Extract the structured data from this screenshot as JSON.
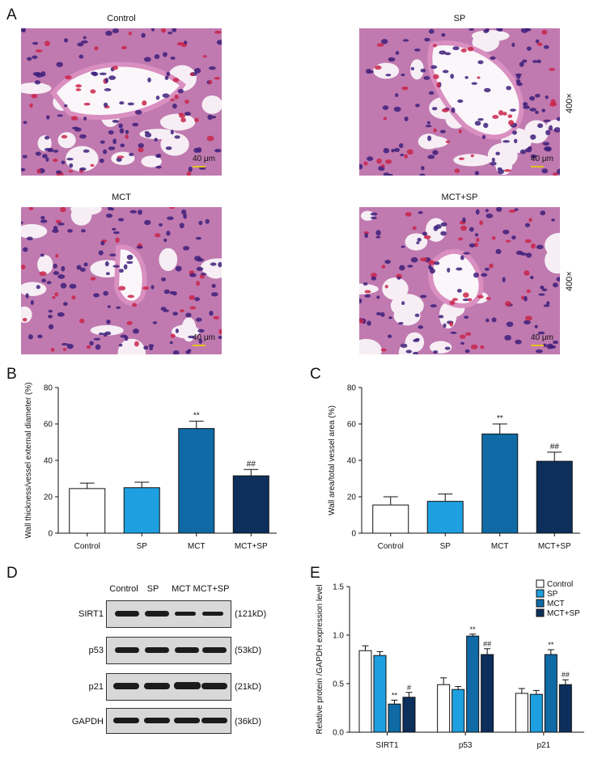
{
  "panels": {
    "A": "A",
    "B": "B",
    "C": "C",
    "D": "D",
    "E": "E"
  },
  "histology": {
    "images": [
      {
        "title": "Control",
        "scale": "40 μm"
      },
      {
        "title": "SP",
        "scale": "40 μm",
        "magnification": "400×"
      },
      {
        "title": "MCT",
        "scale": "40 μm"
      },
      {
        "title": "MCT+SP",
        "scale": "40 μm",
        "magnification": "400×"
      }
    ]
  },
  "western_blot": {
    "lanes": [
      "Control",
      "SP",
      "MCT",
      "MCT+SP"
    ],
    "rows": [
      {
        "label": "SIRT1",
        "kd": "(121kD)"
      },
      {
        "label": "p53",
        "kd": "(53kD)"
      },
      {
        "label": "p21",
        "kd": "(21kD)"
      },
      {
        "label": "GAPDH",
        "kd": "(36kD)"
      }
    ],
    "colors": {
      "band": "#1b1b1b",
      "background": "#d8d8d8"
    }
  },
  "chart_data": [
    {
      "id": "B",
      "type": "bar",
      "categories": [
        "Control",
        "SP",
        "MCT",
        "MCT+SP"
      ],
      "values": [
        24.5,
        25,
        57.5,
        31.5
      ],
      "errors": [
        3,
        3,
        4,
        3.5
      ],
      "annotations": [
        "",
        "",
        "**",
        "##"
      ],
      "ylabel": "Wall thickness/vessel external diameter (%)",
      "ylim": [
        0,
        80
      ],
      "yticks": [
        "0",
        "20",
        "40",
        "60",
        "80"
      ],
      "colors": [
        "#ffffff",
        "#1ea0e0",
        "#0f6aa5",
        "#0c2f5c"
      ]
    },
    {
      "id": "C",
      "type": "bar",
      "categories": [
        "Control",
        "SP",
        "MCT",
        "MCT+SP"
      ],
      "values": [
        15.5,
        17.5,
        54.5,
        39.5
      ],
      "errors": [
        4.5,
        4,
        5.5,
        5
      ],
      "annotations": [
        "",
        "",
        "**",
        "##"
      ],
      "ylabel": "Wall area/total vessel area (%)",
      "ylim": [
        0,
        80
      ],
      "yticks": [
        "0",
        "20",
        "40",
        "60",
        "80"
      ],
      "colors": [
        "#ffffff",
        "#1ea0e0",
        "#0f6aa5",
        "#0c2f5c"
      ]
    },
    {
      "id": "E",
      "type": "bar",
      "categories": [
        "SIRT1",
        "p53",
        "p21"
      ],
      "series": [
        {
          "name": "Control",
          "values": [
            0.84,
            0.49,
            0.4
          ],
          "errors": [
            0.05,
            0.07,
            0.05
          ],
          "annotations": [
            "",
            "",
            ""
          ]
        },
        {
          "name": "SP",
          "values": [
            0.79,
            0.44,
            0.39
          ],
          "errors": [
            0.04,
            0.03,
            0.04
          ],
          "annotations": [
            "",
            "",
            ""
          ]
        },
        {
          "name": "MCT",
          "values": [
            0.29,
            0.99,
            0.8
          ],
          "errors": [
            0.04,
            0.02,
            0.05
          ],
          "annotations": [
            "**",
            "**",
            "**"
          ]
        },
        {
          "name": "MCT+SP",
          "values": [
            0.36,
            0.8,
            0.49
          ],
          "errors": [
            0.05,
            0.06,
            0.05
          ],
          "annotations": [
            "#",
            "##",
            "##"
          ]
        }
      ],
      "ylabel": "Relative protein /GAPDH expression level",
      "ylim": [
        0,
        1.5
      ],
      "yticks": [
        "0.0",
        "0.5",
        "1.0",
        "1.5"
      ],
      "legend": "top-right",
      "colors": [
        "#ffffff",
        "#1ea0e0",
        "#0f6aa5",
        "#0c2f5c"
      ]
    }
  ]
}
